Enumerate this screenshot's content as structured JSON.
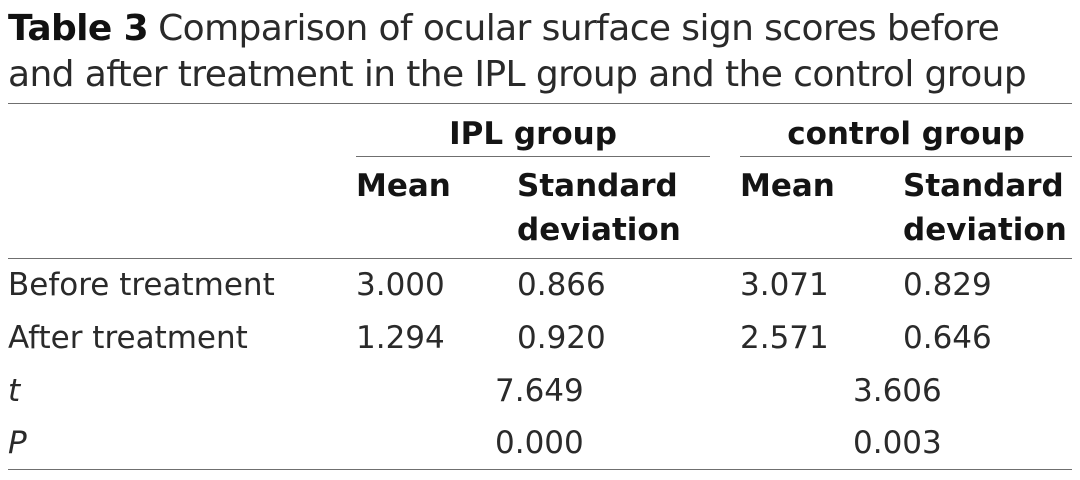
{
  "caption": {
    "label": "Table 3",
    "text": "Comparison of ocular surface sign scores before and after treatment in the IPL group and the control group"
  },
  "groups": [
    {
      "name": "IPL group"
    },
    {
      "name": "control group"
    }
  ],
  "subheaders": {
    "mean": "Mean",
    "sd_line1": "Standard",
    "sd_line2": "deviation"
  },
  "rows": [
    {
      "label": "Before treatment",
      "ipl_mean": "3.000",
      "ipl_sd": "0.866",
      "ctrl_mean": "3.071",
      "ctrl_sd": "0.829"
    },
    {
      "label": "After treatment",
      "ipl_mean": "1.294",
      "ipl_sd": "0.920",
      "ctrl_mean": "2.571",
      "ctrl_sd": "0.646"
    }
  ],
  "stats": [
    {
      "label": "t",
      "ipl": "7.649",
      "ctrl": "3.606"
    },
    {
      "label": "P",
      "ipl": "0.000",
      "ctrl": "0.003"
    }
  ]
}
